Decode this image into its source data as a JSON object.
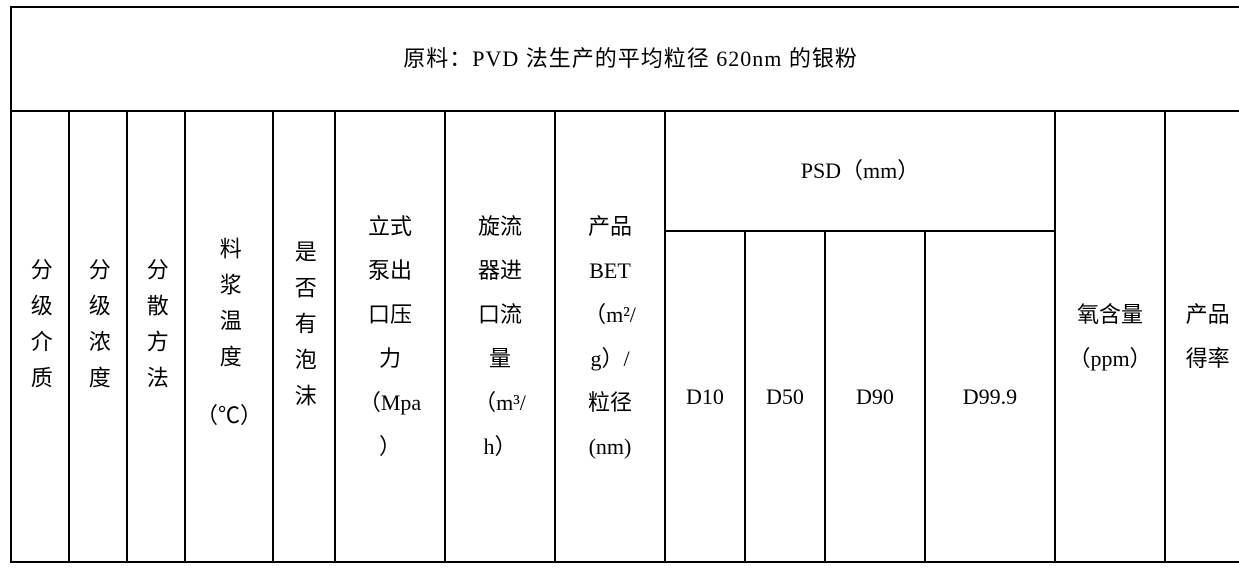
{
  "title": "原料：PVD 法生产的平均粒径 620nm 的银粉",
  "headers": {
    "col1": "分级介质",
    "col2": "分级浓度",
    "col3": "分散方法",
    "col4_l1": "料浆温度",
    "col4_l2": "（℃）",
    "col5": "是否有泡沫",
    "col6_l1": "立式",
    "col6_l2": "泵出",
    "col6_l3": "口压",
    "col6_l4": "力",
    "col6_l5": "（Mpa",
    "col6_l6": "）",
    "col7_l1": "旋流",
    "col7_l2": "器进",
    "col7_l3": "口流",
    "col7_l4": "量",
    "col7_l5": "（m³/",
    "col7_l6": "h）",
    "col8_l1": "产品",
    "col8_l2": "BET",
    "col8_l3": "（m²/",
    "col8_l4": "g）/",
    "col8_l5": "粒径",
    "col8_l6": "(nm)",
    "psd": "PSD（mm）",
    "d10": "D10",
    "d50": "D50",
    "d90": "D90",
    "d999": "D99.9",
    "col13_l1": "氧含量",
    "col13_l2": "（ppm）",
    "col14_l1": "产品",
    "col14_l2": "得率"
  },
  "style": {
    "border_color": "#000000",
    "background": "#ffffff",
    "text_color": "#000000",
    "base_font_size": 22,
    "vertical_letter_spacing": 14
  }
}
